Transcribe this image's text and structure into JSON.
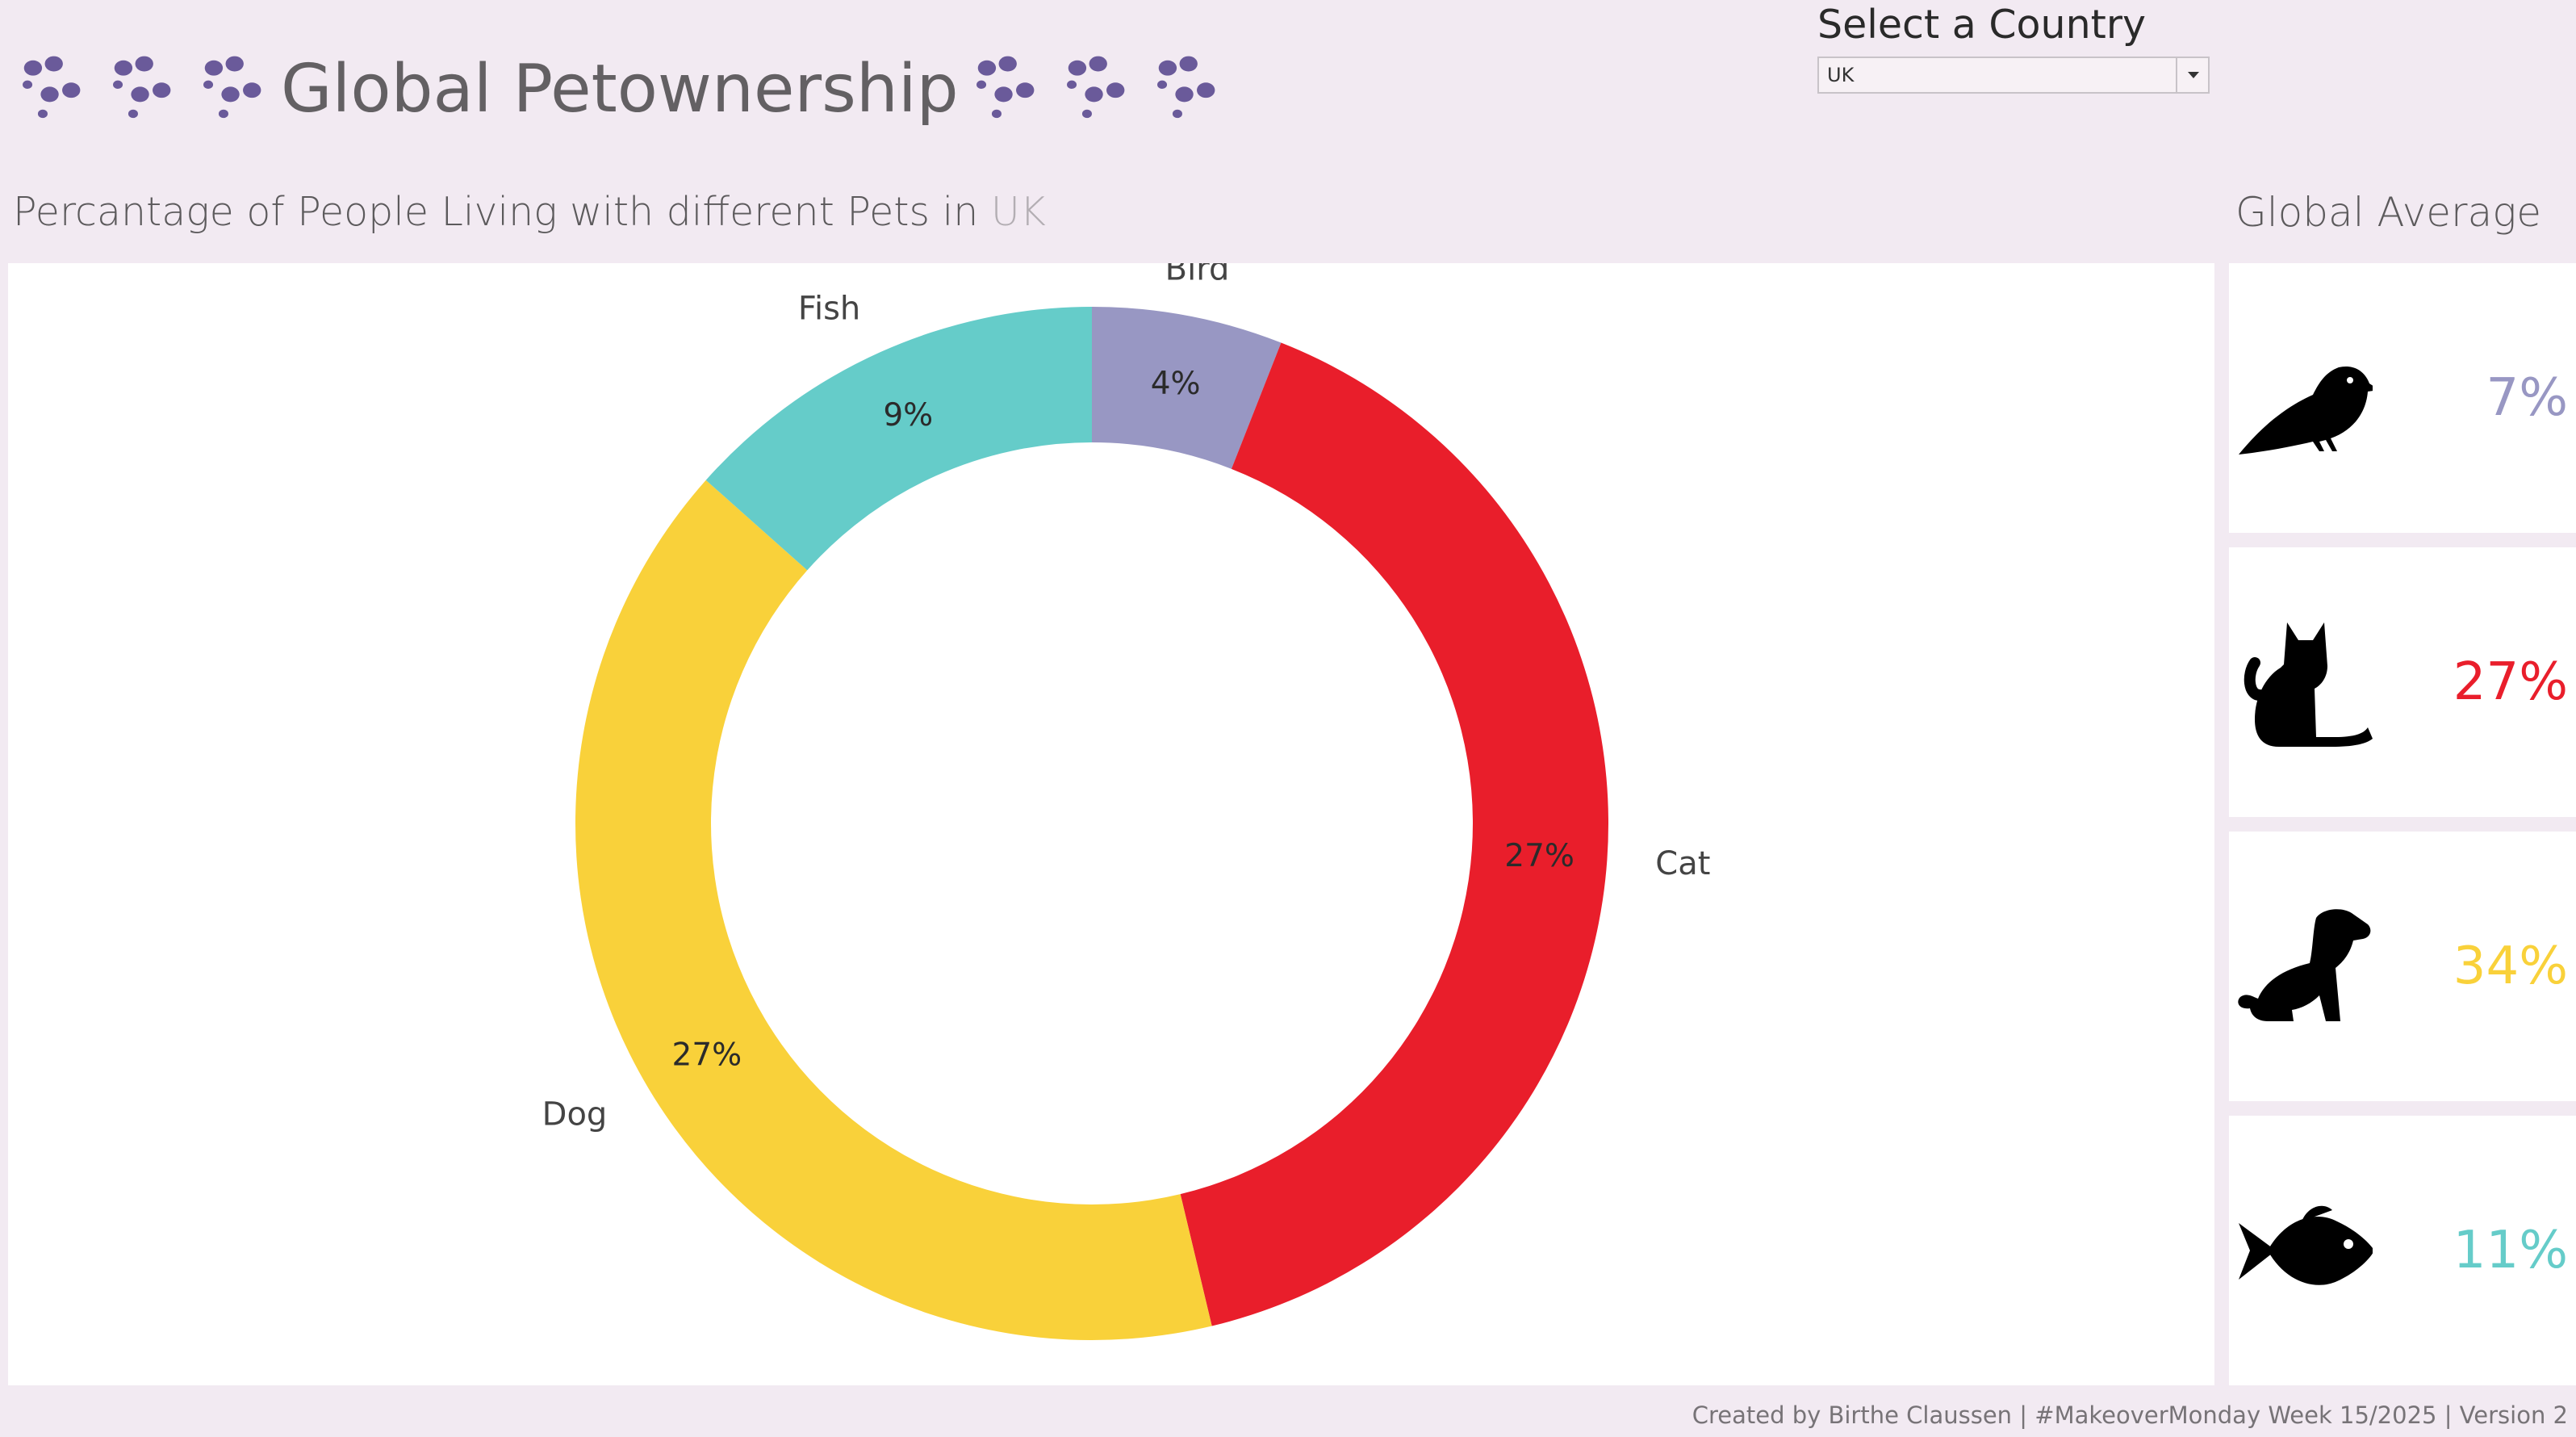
{
  "header": {
    "title": "Global Petownership",
    "paw_color": "#6a5a9a"
  },
  "selector": {
    "label": "Select a Country",
    "value": "UK"
  },
  "subtitle": {
    "prefix": "Percantage of People Living with different Pets in",
    "country": "UK"
  },
  "chart_data": {
    "type": "pie",
    "donut": true,
    "start_angle_deg": 0,
    "direction": "clockwise",
    "categories": [
      "Bird",
      "Cat",
      "Dog",
      "Fish"
    ],
    "values": [
      4,
      27,
      27,
      9
    ],
    "value_labels": [
      "4%",
      "27%",
      "27%",
      "9%"
    ],
    "colors": [
      "#9897c3",
      "#e91e2b",
      "#f9d13a",
      "#65ccc9"
    ]
  },
  "global_average": {
    "title": "Global Average",
    "items": [
      {
        "pet": "Bird",
        "icon": "bird-icon",
        "value": "7%",
        "color": "#9897c3"
      },
      {
        "pet": "Cat",
        "icon": "cat-icon",
        "value": "27%",
        "color": "#e91e2b"
      },
      {
        "pet": "Dog",
        "icon": "dog-icon",
        "value": "34%",
        "color": "#f9d13a"
      },
      {
        "pet": "Fish",
        "icon": "fish-icon",
        "value": "11%",
        "color": "#65ccc9"
      }
    ]
  },
  "footer": {
    "credit": "Created by Birthe Claussen | #MakeoverMonday Week 15/2025 | Version 2"
  }
}
